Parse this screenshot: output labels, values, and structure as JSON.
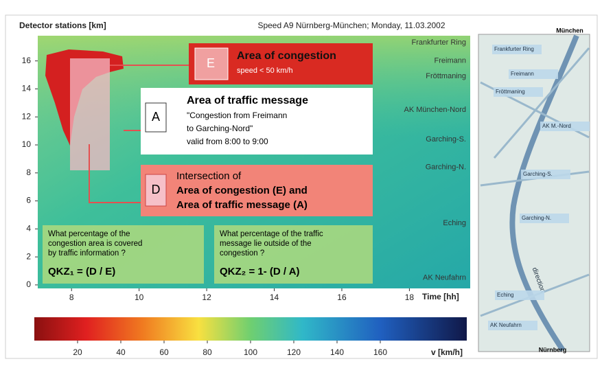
{
  "chart_data": {
    "type": "heatmap",
    "title": "Speed A9 Nürnberg-München; Monday, 11.03.2002",
    "y_label": "Detector stations [km]",
    "x_label": "Time [hh]",
    "xlim": [
      7,
      19.8
    ],
    "xticks": [
      8,
      10,
      12,
      14,
      16,
      18
    ],
    "ylim": [
      -0.25,
      17.8
    ],
    "yticks": [
      0,
      2,
      4,
      6,
      8,
      10,
      12,
      14,
      16
    ],
    "stations": [
      {
        "name": "Frankfurter Ring",
        "km": 17.3
      },
      {
        "name": "Freimann",
        "km": 16.0
      },
      {
        "name": "Fröttmaning",
        "km": 14.9
      },
      {
        "name": "AK München-Nord",
        "km": 12.5
      },
      {
        "name": "Garching-S.",
        "km": 10.4
      },
      {
        "name": "Garching-N.",
        "km": 8.4
      },
      {
        "name": "Eching",
        "km": 4.4
      },
      {
        "name": "AK Neufahrn",
        "km": 0.5
      }
    ],
    "colorbar": {
      "label": "v [km/h]",
      "lim": [
        0,
        200
      ],
      "ticks": [
        20,
        40,
        60,
        80,
        100,
        120,
        140,
        160
      ]
    }
  },
  "annotations": {
    "congestion": {
      "icon": "E",
      "title": "Area of congestion",
      "subtitle": "speed < 50 km/h"
    },
    "message": {
      "icon": "A",
      "title": "Area of traffic message",
      "lines": [
        "\"Congestion from Freimann",
        "to Garching-Nord\"",
        "valid from 8:00 to 9:00"
      ]
    },
    "intersection": {
      "icon": "D",
      "lines": [
        "Intersection of",
        "Area of congestion (E) and",
        "Area of traffic message (A)"
      ]
    },
    "q1": {
      "lines": [
        "What percentage of the",
        "congestion area is covered",
        "by traffic information ?"
      ],
      "formula": "QKZ₁ = (D / E)"
    },
    "q2": {
      "lines": [
        "What percentage of the traffic",
        "message lie outside of the",
        "congestion ?"
      ],
      "formula": "QKZ₂ = 1- (D / A)"
    }
  },
  "map": {
    "north": "München",
    "south": "Nürnberg",
    "direction": "direction",
    "labels": [
      "Frankfurter Ring",
      "Freimann",
      "Fröttmaning",
      "AK M.-Nord",
      "Garching-S.",
      "Garching-N.",
      "Eching",
      "AK Neufahrn"
    ]
  }
}
